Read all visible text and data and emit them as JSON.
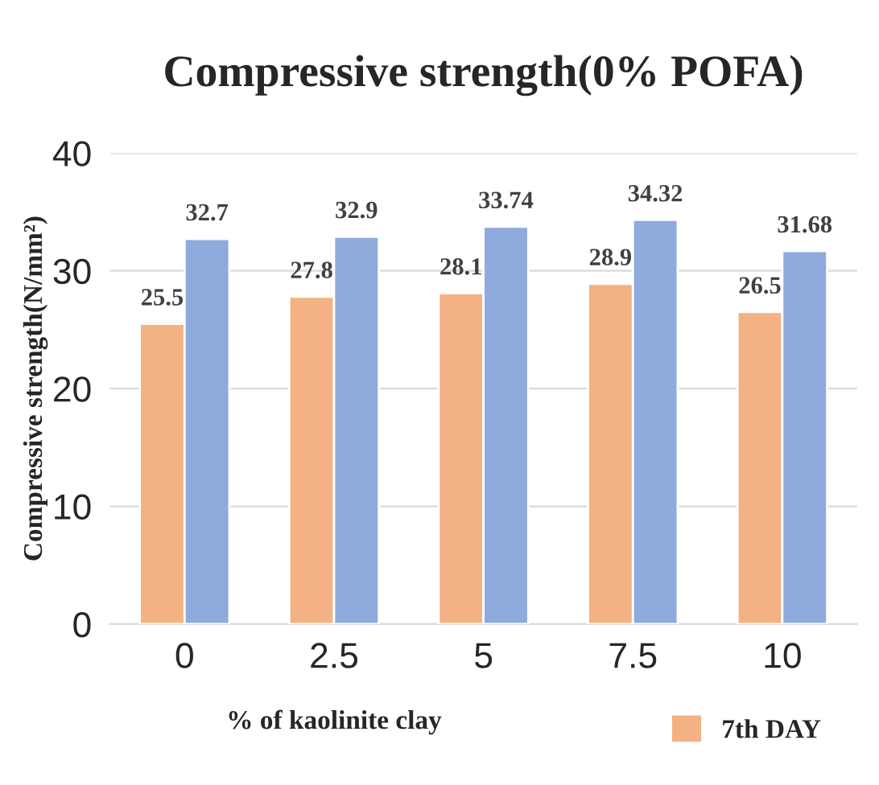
{
  "chart_data": {
    "type": "bar",
    "title": "Compressive strength(0% POFA)",
    "xlabel": "% of kaolinite clay",
    "ylabel": "Compressive strength(N/mm²)",
    "categories": [
      "0",
      "2.5",
      "5",
      "7.5",
      "10"
    ],
    "series": [
      {
        "name": "7th DAY",
        "color": "#f4b183",
        "values": [
          25.5,
          27.8,
          28.1,
          28.9,
          26.5
        ]
      },
      {
        "color": "#8faadc",
        "values": [
          32.7,
          32.9,
          33.74,
          34.32,
          31.68
        ]
      }
    ],
    "ylim": [
      0,
      40
    ],
    "yticks": [
      0,
      10,
      20,
      30,
      40
    ],
    "grid": "y",
    "legend": "bottom",
    "data_labels": true
  }
}
